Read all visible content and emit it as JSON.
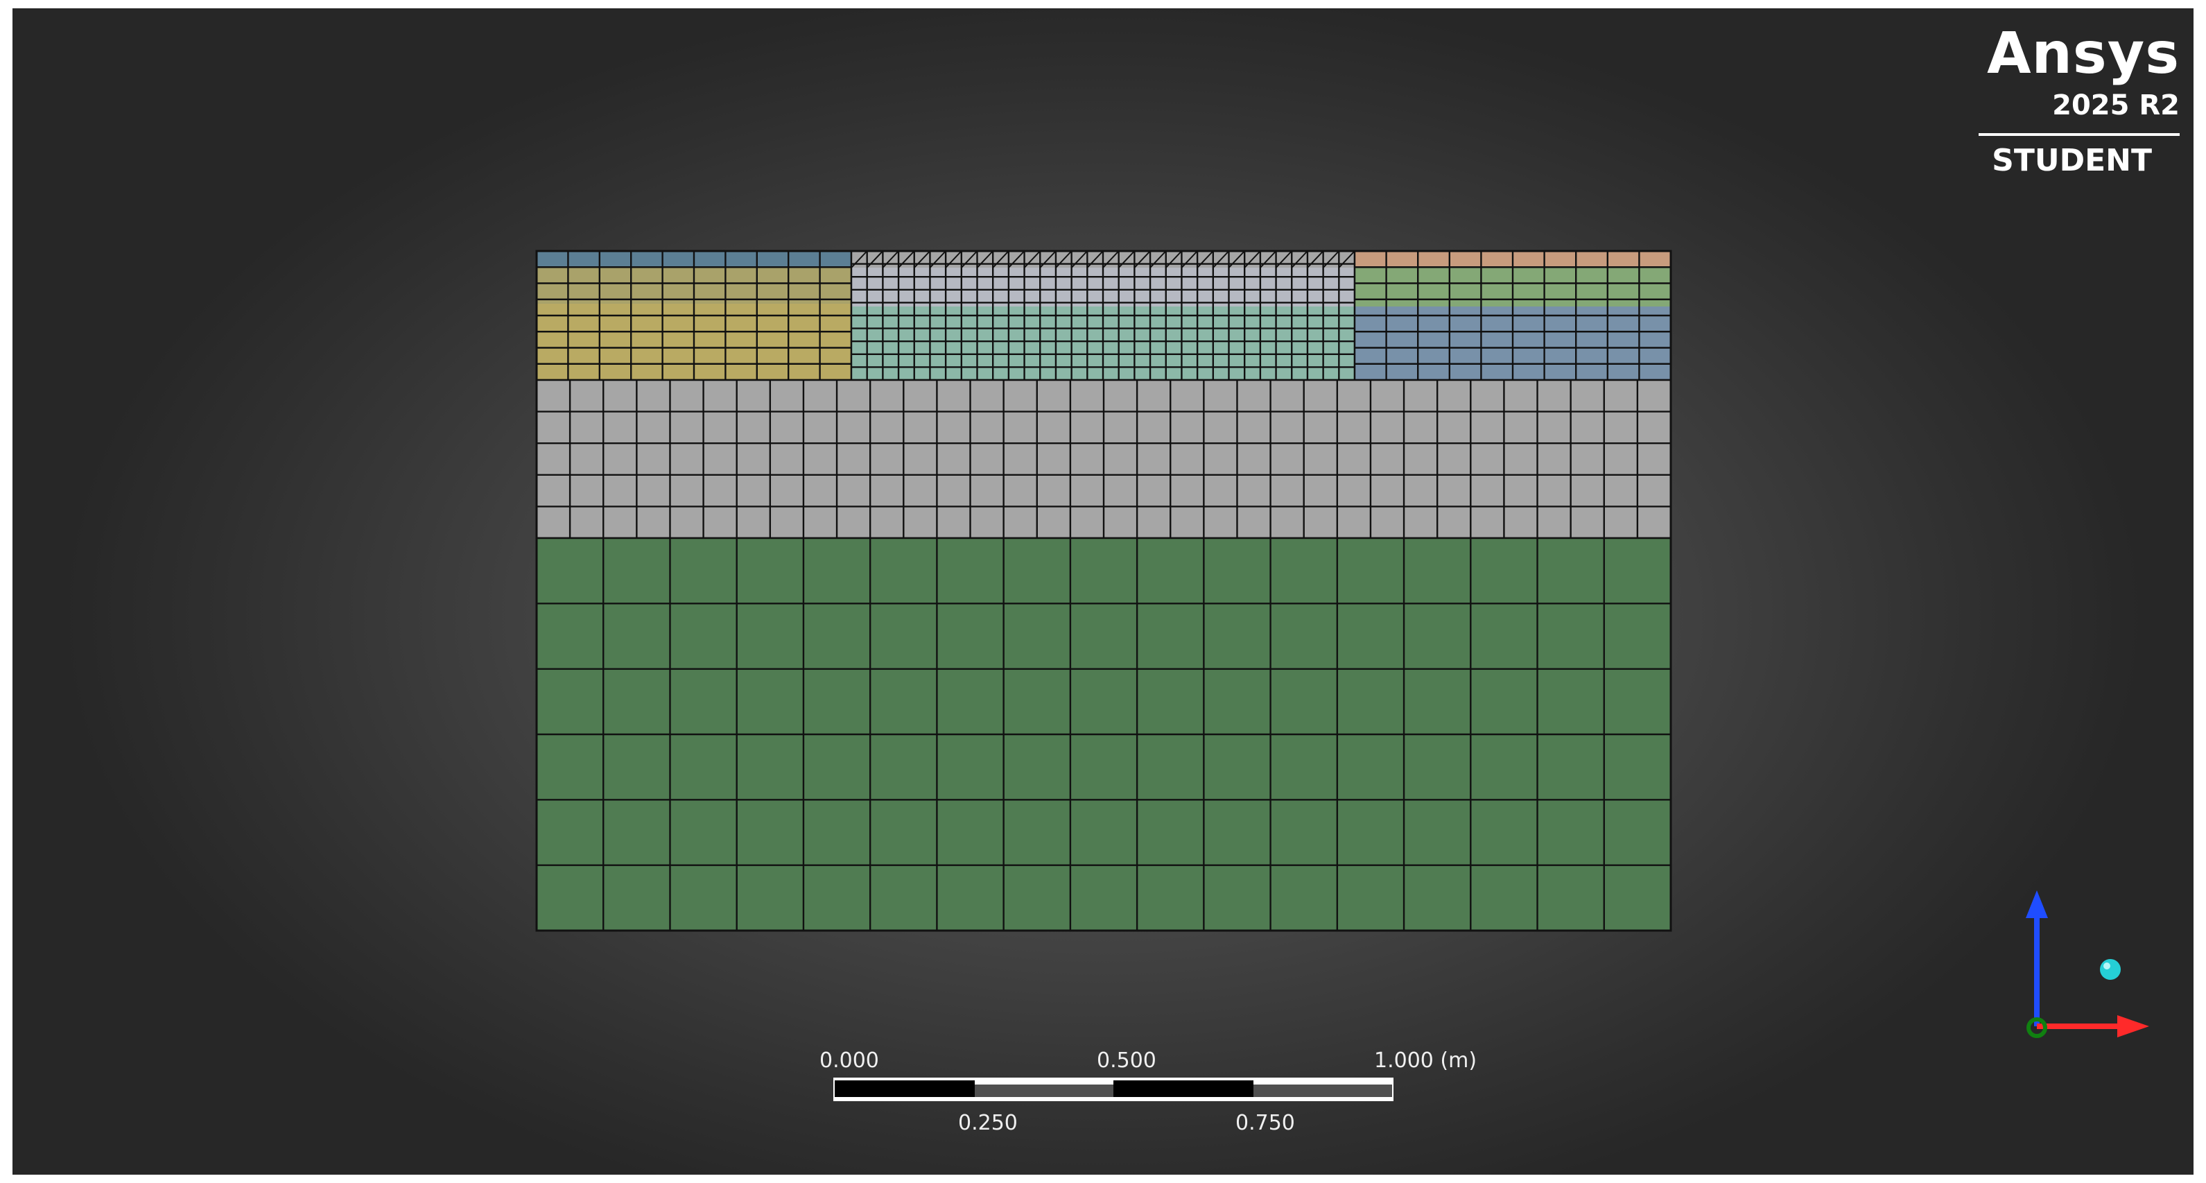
{
  "branding": {
    "name": "Ansys",
    "version": "2025 R2",
    "edition": "STUDENT"
  },
  "scale_bar": {
    "top_labels": [
      "0.000",
      "0.500",
      "1.000 (m)"
    ],
    "bottom_labels": [
      "0.250",
      "0.750"
    ]
  },
  "colors": {
    "mesh_lines": "#111111",
    "ground_green": "#507c52",
    "gray_layer": "#a6a6a6",
    "tan_top_left": "#5c7f94",
    "olive": "#a9a26a",
    "yellow": "#b9aa63",
    "teal": "#8cb8a8",
    "light_gray_band": "#b6b9c2",
    "salmon": "#c89c7e",
    "light_green": "#84a876",
    "steel_blue": "#7891a9",
    "axis_x": "#ff2a2a",
    "axis_y": "#1f4dff",
    "axis_origin": "#108010",
    "triad_sphere": "#25cfd6"
  }
}
